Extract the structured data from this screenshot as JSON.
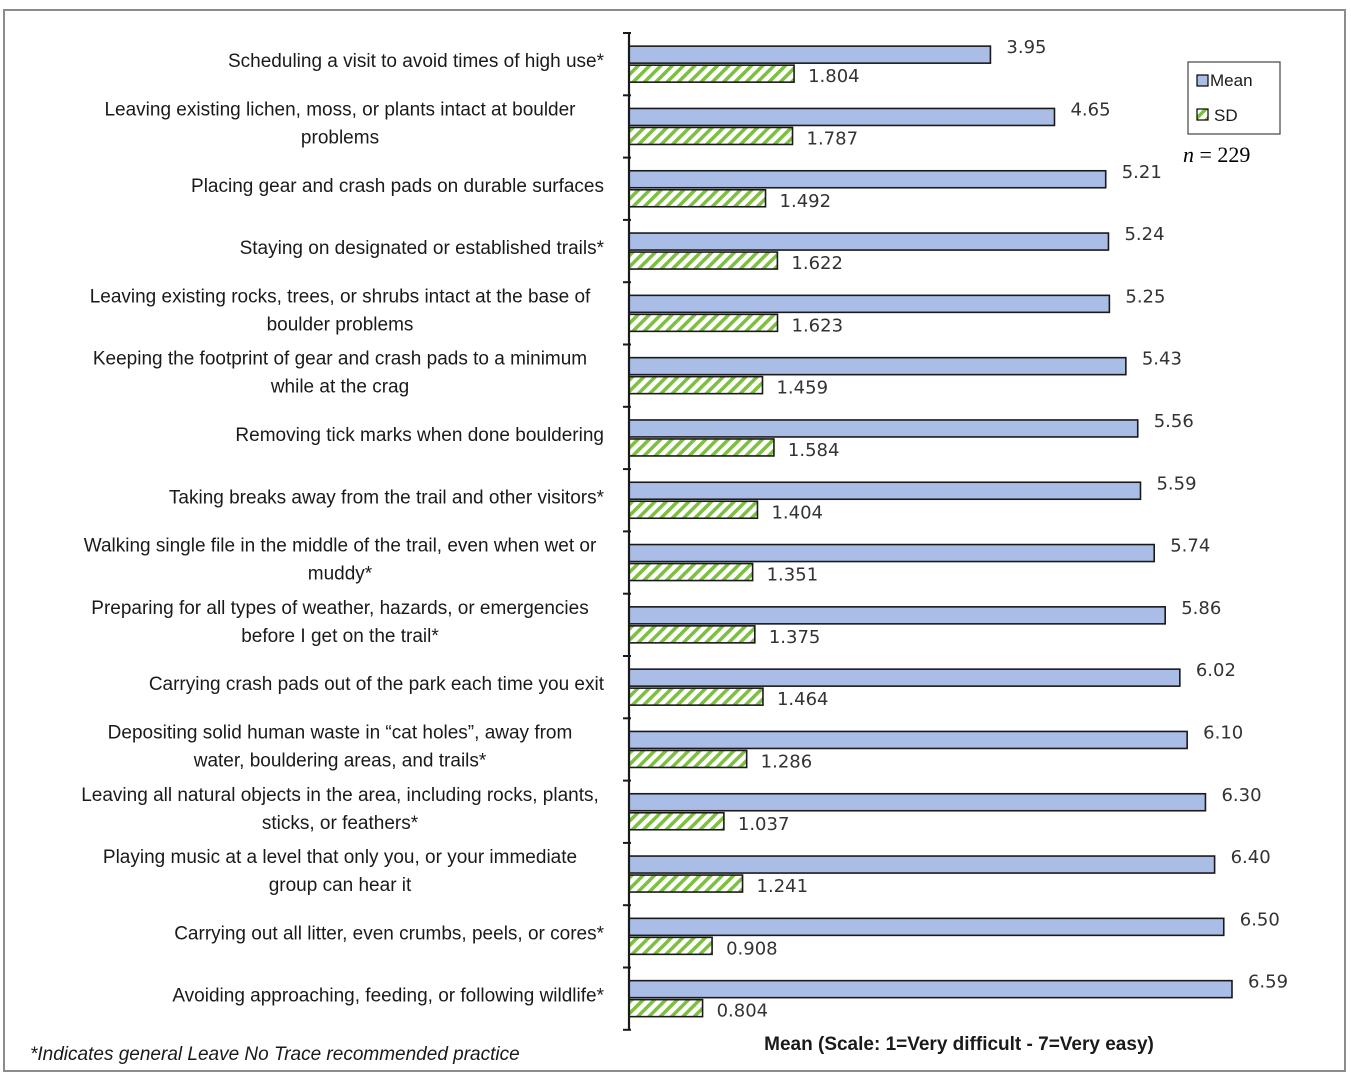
{
  "chart_data": {
    "type": "bar",
    "orientation": "horizontal",
    "xlabel": "Mean (Scale: 1=Very difficult - 7=Very easy)",
    "footnote": "*Indicates general Leave No Trace recommended practice",
    "annotation": {
      "prefix": "n",
      "text": " = 229"
    },
    "legend_position": "top-right",
    "categories": [
      [
        "Scheduling a visit to avoid times of high use*"
      ],
      [
        "Leaving existing lichen, moss, or plants intact at boulder",
        "problems"
      ],
      [
        "Placing gear and crash pads on durable surfaces"
      ],
      [
        "Staying on designated or established trails*"
      ],
      [
        "Leaving existing rocks, trees, or shrubs intact at the base of",
        "boulder problems"
      ],
      [
        "Keeping the footprint of gear and crash pads to a minimum",
        "while at the crag"
      ],
      [
        "Removing tick marks when done bouldering"
      ],
      [
        "Taking breaks away from the trail and other visitors*"
      ],
      [
        "Walking single file in the middle of the trail, even when wet or",
        "muddy*"
      ],
      [
        "Preparing for all types of weather, hazards, or emergencies",
        "before I get on the trail*"
      ],
      [
        "Carrying crash pads out of the park each time you exit"
      ],
      [
        "Depositing solid human waste in “cat holes”, away from",
        "water, bouldering areas, and trails*"
      ],
      [
        "Leaving all natural objects in the area, including rocks, plants,",
        "sticks, or feathers*"
      ],
      [
        "Playing music at a level that only you, or your immediate",
        "group can hear it"
      ],
      [
        "Carrying out all litter, even crumbs, peels, or cores*"
      ],
      [
        "Avoiding approaching, feeding, or following wildlife*"
      ]
    ],
    "series": [
      {
        "name": "Mean",
        "color": "#a9bde6",
        "values": [
          3.95,
          4.65,
          5.21,
          5.24,
          5.25,
          5.43,
          5.56,
          5.59,
          5.74,
          5.86,
          6.02,
          6.1,
          6.3,
          6.4,
          6.5,
          6.59
        ],
        "labels": [
          "3.95",
          "4.65",
          "5.21",
          "5.24",
          "5.25",
          "5.43",
          "5.56",
          "5.59",
          "5.74",
          "5.86",
          "6.02",
          "6.10",
          "6.30",
          "6.40",
          "6.50",
          "6.59"
        ]
      },
      {
        "name": "SD",
        "color": "#7dbf3f",
        "pattern": "diagonal-hatch",
        "values": [
          1.804,
          1.787,
          1.492,
          1.622,
          1.623,
          1.459,
          1.584,
          1.404,
          1.351,
          1.375,
          1.464,
          1.286,
          1.037,
          1.241,
          0.908,
          0.804
        ],
        "labels": [
          "1.804",
          "1.787",
          "1.492",
          "1.622",
          "1.623",
          "1.459",
          "1.584",
          "1.404",
          "1.351",
          "1.375",
          "1.464",
          "1.286",
          "1.037",
          "1.241",
          "0.908",
          "0.804"
        ]
      }
    ],
    "xlim": [
      0,
      7
    ]
  }
}
